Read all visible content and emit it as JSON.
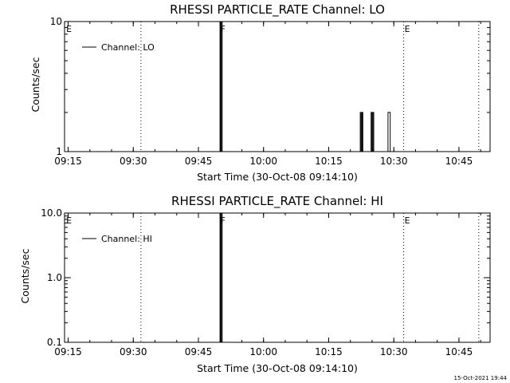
{
  "chart_data": [
    {
      "type": "line",
      "title": "RHESSI PARTICLE_RATE Channel: LO",
      "xlabel": "Start Time (30-Oct-08 09:14:10)",
      "ylabel": "Counts/sec",
      "x_unit": "minutes since 09:14:10",
      "xlim": [
        0,
        98
      ],
      "x_ticks": [
        {
          "value": 0.83,
          "label": "09:15"
        },
        {
          "value": 15.83,
          "label": "09:30"
        },
        {
          "value": 30.83,
          "label": "09:45"
        },
        {
          "value": 45.83,
          "label": "10:00"
        },
        {
          "value": 60.83,
          "label": "10:15"
        },
        {
          "value": 75.83,
          "label": "10:30"
        },
        {
          "value": 90.83,
          "label": "10:45"
        }
      ],
      "y_scale": "log",
      "ylim": [
        1,
        10
      ],
      "y_ticks": [
        {
          "value": 1,
          "label": "1"
        },
        {
          "value": 10,
          "label": "10"
        }
      ],
      "legend": {
        "position": "top-left",
        "entries": [
          "Channel: LO"
        ]
      },
      "series": [
        {
          "name": "Channel: LO",
          "x": [
            0,
            35.8,
            35.8,
            35.9,
            35.9,
            36.1,
            36.1,
            36.3,
            36.3,
            36.4,
            36.4,
            68.1,
            68.1,
            68.3,
            68.3,
            68.5,
            68.5,
            68.7,
            68.7,
            68.9,
            68.9,
            70.6,
            70.6,
            70.8,
            70.8,
            71.0,
            71.0,
            71.2,
            71.2,
            71.4,
            71.4,
            74.5,
            74.5,
            74.8,
            74.8,
            75.0,
            75.0,
            98
          ],
          "y": [
            1,
            1,
            10,
            10,
            1,
            1,
            10,
            10,
            1,
            1,
            1,
            1,
            2,
            2,
            1,
            1,
            2,
            2,
            1,
            1,
            1,
            1,
            2,
            2,
            1,
            1,
            2,
            2,
            1,
            1,
            1,
            1,
            2,
            2,
            2,
            2,
            1,
            1
          ]
        }
      ],
      "markers": [
        {
          "x": 0.2,
          "label": "E"
        },
        {
          "x": 35.7,
          "label": "F"
        },
        {
          "x": 78.1,
          "label": "E"
        }
      ],
      "dotted_lines_x": [
        17.6,
        78.1,
        95.4
      ]
    },
    {
      "type": "line",
      "title": "RHESSI PARTICLE_RATE Channel: HI",
      "xlabel": "Start Time (30-Oct-08 09:14:10)",
      "ylabel": "Counts/sec",
      "x_unit": "minutes since 09:14:10",
      "xlim": [
        0,
        98
      ],
      "x_ticks": [
        {
          "value": 0.83,
          "label": "09:15"
        },
        {
          "value": 15.83,
          "label": "09:30"
        },
        {
          "value": 30.83,
          "label": "09:45"
        },
        {
          "value": 45.83,
          "label": "10:00"
        },
        {
          "value": 60.83,
          "label": "10:15"
        },
        {
          "value": 75.83,
          "label": "10:30"
        },
        {
          "value": 90.83,
          "label": "10:45"
        }
      ],
      "y_scale": "log",
      "ylim": [
        0.1,
        10
      ],
      "y_ticks": [
        {
          "value": 0.1,
          "label": "0.1"
        },
        {
          "value": 1,
          "label": "1.0"
        },
        {
          "value": 10,
          "label": "10.0"
        }
      ],
      "legend": {
        "position": "top-left",
        "entries": [
          "Channel: HI"
        ]
      },
      "series": [
        {
          "name": "Channel: HI",
          "x": [
            0,
            35.8,
            35.8,
            35.9,
            35.9,
            36.1,
            36.1,
            36.3,
            36.3,
            36.4,
            36.4,
            98
          ],
          "y": [
            0.1,
            0.1,
            10,
            10,
            0.1,
            0.1,
            10,
            10,
            0.1,
            0.1,
            0.1,
            0.1
          ]
        }
      ],
      "markers": [
        {
          "x": 0.2,
          "label": "E"
        },
        {
          "x": 35.7,
          "label": "F"
        },
        {
          "x": 78.1,
          "label": "E"
        }
      ],
      "dotted_lines_x": [
        17.6,
        78.1,
        95.4
      ]
    }
  ],
  "footer": {
    "timestamp": "15-Oct-2021 19:44"
  }
}
